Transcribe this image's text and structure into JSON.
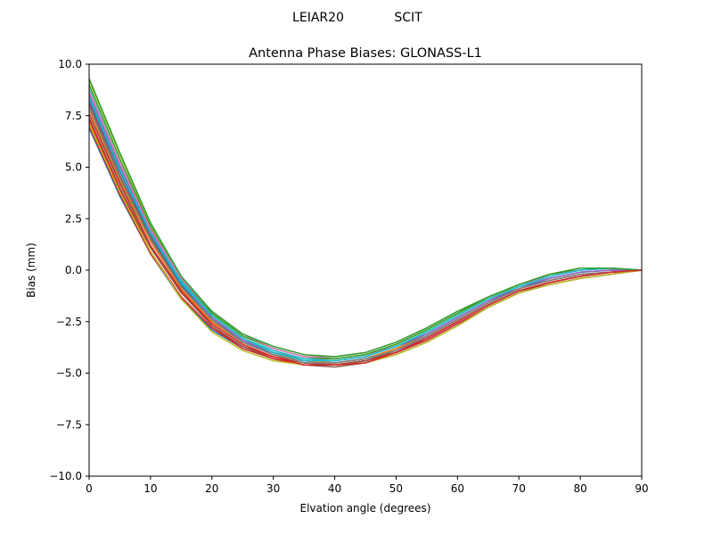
{
  "suptitle": {
    "left": "LEIAR20",
    "right": "SCIT"
  },
  "chart_data": {
    "type": "line",
    "title": "Antenna Phase Biases: GLONASS-L1",
    "xlabel": "Elvation angle (degrees)",
    "ylabel": "Bias (mm)",
    "xlim": [
      0,
      90
    ],
    "ylim": [
      -10.0,
      10.0
    ],
    "xticks": [
      0,
      10,
      20,
      30,
      40,
      50,
      60,
      70,
      80,
      90
    ],
    "xtick_labels": [
      "0",
      "10",
      "20",
      "30",
      "40",
      "50",
      "60",
      "70",
      "80",
      "90"
    ],
    "yticks": [
      -10.0,
      -7.5,
      -5.0,
      -2.5,
      0.0,
      2.5,
      5.0,
      7.5,
      10.0
    ],
    "ytick_labels": [
      "−10.0",
      "−7.5",
      "−5.0",
      "−2.5",
      "0.0",
      "2.5",
      "5.0",
      "7.5",
      "10.0"
    ],
    "grid": false,
    "legend": "none",
    "x": [
      0,
      5,
      10,
      15,
      20,
      25,
      30,
      35,
      40,
      45,
      50,
      55,
      60,
      65,
      70,
      75,
      80,
      85,
      90
    ],
    "series": [
      {
        "color": "#1f77b4",
        "values": [
          6.9,
          3.6,
          0.8,
          -1.4,
          -2.9,
          -3.8,
          -4.3,
          -4.6,
          -4.6,
          -4.4,
          -4.0,
          -3.4,
          -2.6,
          -1.8,
          -1.1,
          -0.7,
          -0.4,
          -0.2,
          0.0
        ]
      },
      {
        "color": "#ff7f0e",
        "values": [
          7.2,
          3.9,
          1.1,
          -1.1,
          -2.6,
          -3.6,
          -4.2,
          -4.5,
          -4.5,
          -4.3,
          -3.8,
          -3.2,
          -2.4,
          -1.6,
          -0.9,
          -0.5,
          -0.2,
          -0.1,
          0.0
        ]
      },
      {
        "color": "#2ca02c",
        "values": [
          7.6,
          4.3,
          1.4,
          -0.9,
          -2.5,
          -3.5,
          -4.1,
          -4.4,
          -4.5,
          -4.3,
          -3.9,
          -3.3,
          -2.5,
          -1.7,
          -1.0,
          -0.6,
          -0.3,
          -0.1,
          0.0
        ]
      },
      {
        "color": "#d62728",
        "values": [
          7.0,
          3.7,
          0.8,
          -1.3,
          -2.8,
          -3.7,
          -4.2,
          -4.5,
          -4.6,
          -4.4,
          -4.0,
          -3.4,
          -2.6,
          -1.8,
          -1.1,
          -0.7,
          -0.4,
          -0.2,
          0.0
        ]
      },
      {
        "color": "#9467bd",
        "values": [
          8.2,
          4.8,
          1.8,
          -0.6,
          -2.2,
          -3.3,
          -4.0,
          -4.4,
          -4.5,
          -4.3,
          -3.9,
          -3.3,
          -2.5,
          -1.7,
          -1.0,
          -0.6,
          -0.3,
          -0.1,
          0.0
        ]
      },
      {
        "color": "#8c564b",
        "values": [
          7.4,
          4.0,
          1.1,
          -1.1,
          -2.7,
          -3.7,
          -4.3,
          -4.6,
          -4.7,
          -4.5,
          -4.1,
          -3.5,
          -2.7,
          -1.8,
          -1.1,
          -0.6,
          -0.3,
          -0.1,
          0.0
        ]
      },
      {
        "color": "#e377c2",
        "values": [
          8.0,
          4.6,
          1.6,
          -0.5,
          -2.0,
          -3.1,
          -3.8,
          -4.2,
          -4.3,
          -4.1,
          -3.7,
          -3.1,
          -2.3,
          -1.5,
          -0.8,
          -0.4,
          -0.1,
          0.0,
          0.0
        ]
      },
      {
        "color": "#7f7f7f",
        "values": [
          8.5,
          5.0,
          1.9,
          -0.6,
          -2.3,
          -3.4,
          -4.0,
          -4.3,
          -4.3,
          -4.1,
          -3.6,
          -2.9,
          -2.1,
          -1.3,
          -0.7,
          -0.2,
          0.0,
          0.1,
          0.0
        ]
      },
      {
        "color": "#bcbd22",
        "values": [
          9.2,
          5.6,
          2.2,
          -0.3,
          -2.1,
          -3.2,
          -3.8,
          -4.2,
          -4.3,
          -4.1,
          -3.6,
          -2.9,
          -2.1,
          -1.4,
          -0.7,
          -0.2,
          0.1,
          0.1,
          0.0
        ]
      },
      {
        "color": "#17becf",
        "values": [
          8.8,
          5.2,
          2.0,
          -0.5,
          -2.2,
          -3.3,
          -3.9,
          -4.3,
          -4.4,
          -4.2,
          -3.7,
          -3.0,
          -2.2,
          -1.4,
          -0.8,
          -0.3,
          0.0,
          0.1,
          0.0
        ]
      },
      {
        "color": "#1f77b4",
        "values": [
          8.3,
          4.8,
          1.7,
          -0.7,
          -2.4,
          -3.4,
          -4.1,
          -4.4,
          -4.5,
          -4.3,
          -3.8,
          -3.1,
          -2.3,
          -1.5,
          -0.9,
          -0.4,
          -0.1,
          0.0,
          0.0
        ]
      },
      {
        "color": "#ff7f0e",
        "values": [
          7.8,
          4.4,
          1.4,
          -0.9,
          -2.5,
          -3.5,
          -4.1,
          -4.4,
          -4.5,
          -4.3,
          -3.8,
          -3.2,
          -2.4,
          -1.6,
          -0.9,
          -0.5,
          -0.2,
          -0.1,
          0.0
        ]
      },
      {
        "color": "#2ca02c",
        "values": [
          9.0,
          5.4,
          2.1,
          -0.4,
          -2.1,
          -3.2,
          -3.8,
          -4.2,
          -4.3,
          -4.1,
          -3.6,
          -2.9,
          -2.1,
          -1.3,
          -0.7,
          -0.2,
          0.1,
          0.1,
          0.0
        ]
      },
      {
        "color": "#d62728",
        "values": [
          7.3,
          3.9,
          0.9,
          -1.3,
          -2.8,
          -3.8,
          -4.3,
          -4.6,
          -4.6,
          -4.4,
          -4.0,
          -3.3,
          -2.5,
          -1.7,
          -1.0,
          -0.6,
          -0.3,
          -0.1,
          0.0
        ]
      },
      {
        "color": "#9467bd",
        "values": [
          8.6,
          5.1,
          1.9,
          -0.6,
          -2.3,
          -3.4,
          -4.0,
          -4.4,
          -4.4,
          -4.2,
          -3.7,
          -3.1,
          -2.3,
          -1.5,
          -0.8,
          -0.4,
          -0.1,
          0.0,
          0.0
        ]
      },
      {
        "color": "#8c564b",
        "values": [
          8.1,
          4.6,
          1.6,
          -0.8,
          -2.4,
          -3.5,
          -4.1,
          -4.5,
          -4.6,
          -4.4,
          -3.9,
          -3.2,
          -2.4,
          -1.6,
          -0.9,
          -0.5,
          -0.2,
          -0.1,
          0.0
        ]
      },
      {
        "color": "#e377c2",
        "values": [
          8.7,
          5.2,
          2.0,
          -0.4,
          -2.0,
          -3.1,
          -3.8,
          -4.2,
          -4.2,
          -4.0,
          -3.5,
          -2.8,
          -2.0,
          -1.3,
          -0.7,
          -0.3,
          0.0,
          0.1,
          0.0
        ]
      },
      {
        "color": "#7f7f7f",
        "values": [
          7.9,
          4.5,
          1.5,
          -0.8,
          -2.4,
          -3.5,
          -4.1,
          -4.5,
          -4.5,
          -4.3,
          -3.9,
          -3.2,
          -2.4,
          -1.6,
          -0.9,
          -0.5,
          -0.2,
          -0.1,
          0.0
        ]
      },
      {
        "color": "#bcbd22",
        "values": [
          7.1,
          3.8,
          0.9,
          -1.4,
          -3.0,
          -3.9,
          -4.4,
          -4.6,
          -4.6,
          -4.5,
          -4.1,
          -3.5,
          -2.7,
          -1.8,
          -1.1,
          -0.7,
          -0.4,
          -0.2,
          0.0
        ]
      },
      {
        "color": "#17becf",
        "values": [
          8.4,
          4.9,
          1.8,
          -0.6,
          -2.2,
          -3.3,
          -4.0,
          -4.4,
          -4.4,
          -4.2,
          -3.7,
          -3.0,
          -2.2,
          -1.4,
          -0.8,
          -0.3,
          0.0,
          0.1,
          0.0
        ]
      },
      {
        "color": "#2ca02c",
        "values": [
          9.3,
          5.7,
          2.3,
          -0.3,
          -2.0,
          -3.1,
          -3.7,
          -4.1,
          -4.2,
          -4.0,
          -3.5,
          -2.8,
          -2.0,
          -1.3,
          -0.7,
          -0.2,
          0.1,
          0.1,
          0.0
        ]
      },
      {
        "color": "#d62728",
        "values": [
          7.6,
          4.2,
          1.2,
          -1.0,
          -2.6,
          -3.6,
          -4.2,
          -4.6,
          -4.6,
          -4.5,
          -4.0,
          -3.3,
          -2.5,
          -1.7,
          -1.0,
          -0.6,
          -0.3,
          -0.1,
          0.0
        ]
      }
    ]
  }
}
